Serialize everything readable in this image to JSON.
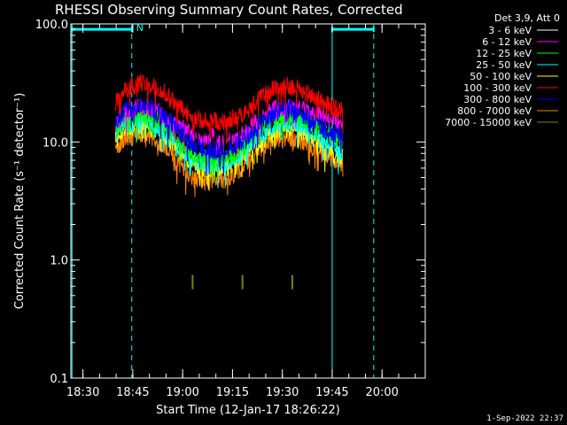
{
  "chart_data": {
    "type": "line",
    "title": "RHESSI Observing Summary Count Rates, Corrected",
    "xlabel": "Start Time (12-Jan-17 18:26:22)",
    "ylabel": "Corrected Count Rate (s⁻¹ detector⁻¹)",
    "x_ticks": [
      "18:30",
      "18:45",
      "19:00",
      "19:15",
      "19:30",
      "19:45",
      "20:00"
    ],
    "x_tick_minutes": [
      30,
      45,
      60,
      75,
      90,
      105,
      120
    ],
    "xlim_minutes": [
      26.37,
      133.0
    ],
    "y_scale": "log",
    "ylim": [
      0.1,
      100.0
    ],
    "y_ticks": [
      "0.1",
      "1.0",
      "10.0",
      "100.0"
    ],
    "y_tick_values": [
      0.1,
      1.0,
      10.0,
      100.0
    ],
    "legend_title": "Det 3,9, Att 0",
    "legend_placement": "top-right, outside plot",
    "series": [
      {
        "name": "3 - 6 keV",
        "color": "#000000",
        "minutes": [
          39.8,
          43,
          48,
          53,
          58,
          63,
          68,
          73,
          78,
          83,
          88,
          93,
          98,
          103,
          108.3
        ],
        "values": [
          20,
          27,
          31,
          28,
          20,
          14,
          12,
          12,
          15,
          22,
          28,
          29,
          25,
          22,
          20
        ]
      },
      {
        "name": "6 - 12 keV",
        "color": "#ff00ff",
        "minutes": [
          39.8,
          43,
          48,
          53,
          58,
          63,
          68,
          73,
          78,
          83,
          88,
          93,
          98,
          103,
          108.3
        ],
        "values": [
          14,
          18,
          20,
          18,
          14,
          12,
          11,
          11,
          12,
          15,
          19,
          20,
          18,
          16,
          14
        ]
      },
      {
        "name": "12 - 25 keV",
        "color": "#00ff00",
        "minutes": [
          39.8,
          43,
          48,
          53,
          58,
          63,
          68,
          73,
          78,
          83,
          88,
          93,
          98,
          103,
          108.3
        ],
        "values": [
          13,
          16,
          17,
          15,
          11,
          8,
          7,
          7,
          9,
          13,
          16,
          17,
          15,
          12,
          10
        ]
      },
      {
        "name": "25 - 50 keV",
        "color": "#00ffff",
        "minutes": [
          39.8,
          43,
          48,
          53,
          58,
          63,
          68,
          73,
          78,
          83,
          88,
          93,
          98,
          103,
          108.3
        ],
        "values": [
          12,
          14,
          15,
          13,
          10,
          7,
          6.5,
          6.5,
          8,
          11,
          14,
          15,
          13,
          10,
          8
        ]
      },
      {
        "name": "50 - 100 keV",
        "color": "#ffff00",
        "minutes": [
          39.8,
          43,
          48,
          53,
          58,
          63,
          68,
          73,
          78,
          83,
          88,
          93,
          98,
          103,
          108.3
        ],
        "values": [
          11,
          13,
          14,
          12,
          9,
          6.5,
          6,
          6,
          7.5,
          10,
          12.5,
          13,
          11.5,
          9,
          7.5
        ]
      },
      {
        "name": "100 - 300 keV",
        "color": "#ff0000",
        "minutes": [
          39.8,
          43,
          48,
          53,
          58,
          63,
          68,
          73,
          78,
          83,
          88,
          93,
          98,
          103,
          108.3
        ],
        "values": [
          22,
          28,
          32,
          28,
          21,
          16,
          15,
          15,
          17,
          23,
          29,
          30,
          26,
          21,
          18
        ]
      },
      {
        "name": "300 - 800 keV",
        "color": "#0000ff",
        "minutes": [
          39.8,
          43,
          48,
          53,
          58,
          63,
          68,
          73,
          78,
          83,
          88,
          93,
          98,
          103,
          108.3
        ],
        "values": [
          15,
          19,
          21,
          18,
          13,
          9.5,
          8.5,
          8.5,
          10,
          14,
          18,
          19,
          16,
          13,
          11
        ]
      },
      {
        "name": "800 - 7000 keV",
        "color": "#ff8000",
        "minutes": [
          39.8,
          43,
          48,
          53,
          58,
          63,
          68,
          73,
          78,
          83,
          88,
          93,
          98,
          103,
          108.3
        ],
        "values": [
          9,
          11,
          12,
          10,
          7,
          5,
          4.8,
          4.8,
          6,
          8.5,
          10.5,
          11,
          9.5,
          7.5,
          6.5
        ]
      },
      {
        "name": "7000 - 15000 keV",
        "color": "#808000",
        "minutes": [
          63.0,
          78.0,
          93.0
        ],
        "values": [
          0.65,
          0.65,
          0.65
        ]
      }
    ],
    "markers": {
      "saa_label": "N",
      "solid_lines_minutes": [
        26.7,
        105.0
      ],
      "dashed_lines_minutes": [
        44.7,
        117.5
      ],
      "bars": [
        [
          26.7,
          44.7
        ],
        [
          105.0,
          117.5
        ]
      ],
      "bar_level": 90
    }
  },
  "timestamp": "1-Sep-2022 22:37"
}
